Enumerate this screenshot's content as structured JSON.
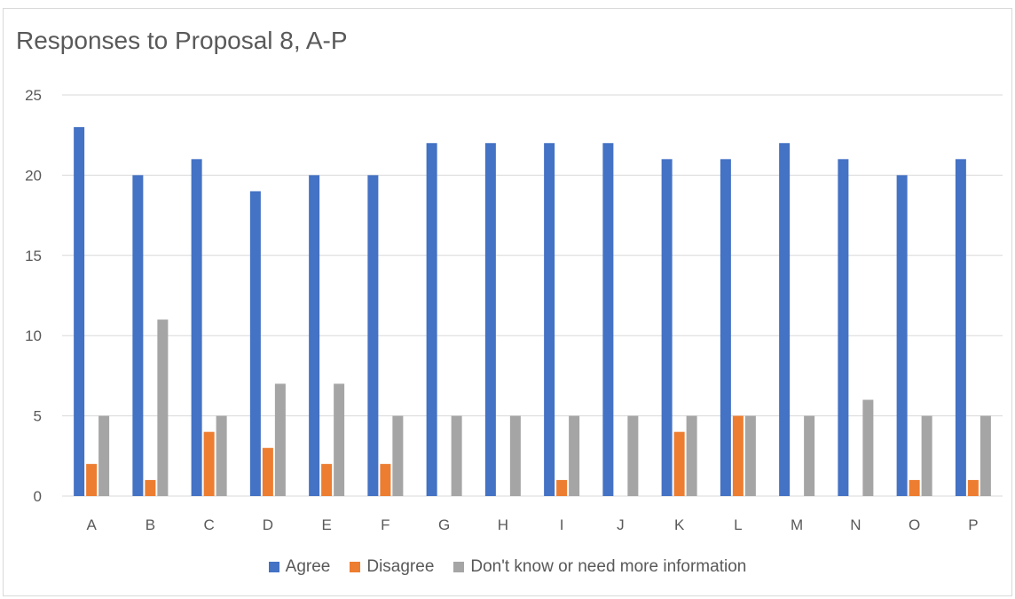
{
  "chart_data": {
    "type": "bar",
    "title": "Responses to Proposal 8, A-P",
    "xlabel": "",
    "ylabel": "",
    "ylim": [
      0,
      25
    ],
    "yticks": [
      0,
      5,
      10,
      15,
      20,
      25
    ],
    "grid": true,
    "legend_position": "bottom",
    "categories": [
      "A",
      "B",
      "C",
      "D",
      "E",
      "F",
      "G",
      "H",
      "I",
      "J",
      "K",
      "L",
      "M",
      "N",
      "O",
      "P"
    ],
    "series": [
      {
        "name": "Agree",
        "color": "#4472C4",
        "values": [
          23,
          20,
          21,
          19,
          20,
          20,
          22,
          22,
          22,
          22,
          21,
          21,
          22,
          21,
          20,
          21
        ]
      },
      {
        "name": "Disagree",
        "color": "#ED7D31",
        "values": [
          2,
          1,
          4,
          3,
          2,
          2,
          0,
          0,
          1,
          0,
          4,
          5,
          0,
          0,
          1,
          1
        ]
      },
      {
        "name": "Don't know or need more information",
        "color": "#A5A5A5",
        "values": [
          5,
          11,
          5,
          7,
          7,
          5,
          5,
          5,
          5,
          5,
          5,
          5,
          5,
          6,
          5,
          5
        ]
      }
    ]
  }
}
